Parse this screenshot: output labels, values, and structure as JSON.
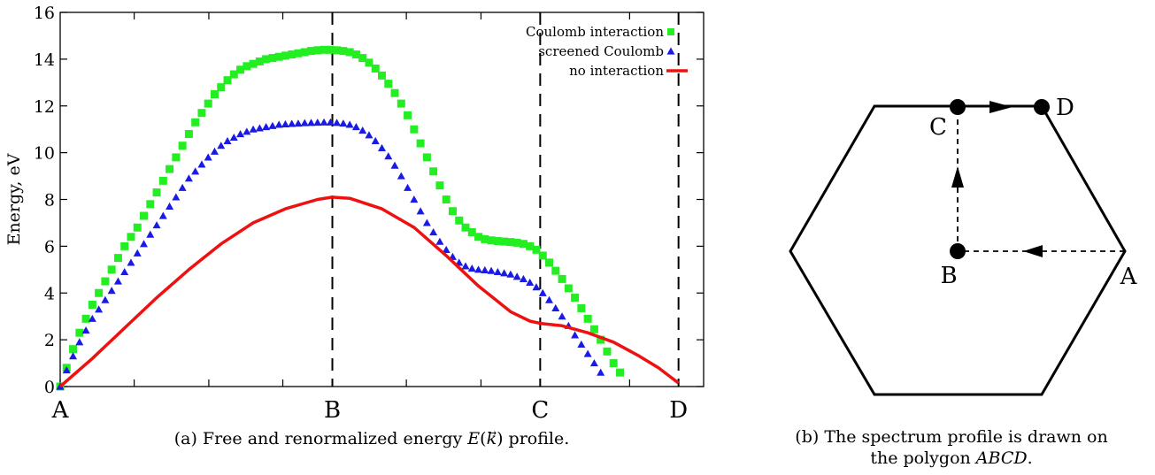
{
  "chart_data": [
    {
      "type": "scatter",
      "ylabel": "Energy, eV",
      "ylim": [
        0,
        16
      ],
      "yticks": [
        0,
        2,
        4,
        6,
        8,
        10,
        12,
        14,
        16
      ],
      "xlim": [
        0,
        1
      ],
      "xticks": [
        {
          "x": 0.0,
          "label": "A"
        },
        {
          "x": 0.423,
          "label": "B"
        },
        {
          "x": 0.746,
          "label": "C"
        },
        {
          "x": 0.961,
          "label": "D"
        }
      ],
      "minor_xticks": [
        0.115,
        0.231,
        0.346,
        0.538,
        0.654,
        0.885
      ],
      "vlines": [
        0.423,
        0.746,
        0.961
      ],
      "legend_position": "top-right",
      "series": [
        {
          "name": "Coulomb interaction",
          "marker": "square",
          "color": "#22ee22",
          "points": [
            [
              0.0,
              0.0
            ],
            [
              0.01,
              0.8
            ],
            [
              0.02,
              1.6
            ],
            [
              0.03,
              2.3
            ],
            [
              0.04,
              2.9
            ],
            [
              0.05,
              3.5
            ],
            [
              0.06,
              4.0
            ],
            [
              0.07,
              4.5
            ],
            [
              0.08,
              5.0
            ],
            [
              0.09,
              5.5
            ],
            [
              0.1,
              6.0
            ],
            [
              0.11,
              6.4
            ],
            [
              0.12,
              6.8
            ],
            [
              0.13,
              7.3
            ],
            [
              0.14,
              7.8
            ],
            [
              0.15,
              8.3
            ],
            [
              0.16,
              8.8
            ],
            [
              0.17,
              9.3
            ],
            [
              0.18,
              9.8
            ],
            [
              0.19,
              10.3
            ],
            [
              0.2,
              10.8
            ],
            [
              0.21,
              11.3
            ],
            [
              0.22,
              11.7
            ],
            [
              0.23,
              12.1
            ],
            [
              0.24,
              12.5
            ],
            [
              0.25,
              12.8
            ],
            [
              0.26,
              13.1
            ],
            [
              0.27,
              13.35
            ],
            [
              0.28,
              13.55
            ],
            [
              0.29,
              13.7
            ],
            [
              0.3,
              13.8
            ],
            [
              0.31,
              13.9
            ],
            [
              0.32,
              14.0
            ],
            [
              0.33,
              14.05
            ],
            [
              0.34,
              14.1
            ],
            [
              0.35,
              14.15
            ],
            [
              0.36,
              14.2
            ],
            [
              0.37,
              14.25
            ],
            [
              0.38,
              14.3
            ],
            [
              0.39,
              14.35
            ],
            [
              0.4,
              14.38
            ],
            [
              0.41,
              14.4
            ],
            [
              0.42,
              14.4
            ],
            [
              0.43,
              14.38
            ],
            [
              0.44,
              14.35
            ],
            [
              0.45,
              14.3
            ],
            [
              0.46,
              14.2
            ],
            [
              0.47,
              14.05
            ],
            [
              0.48,
              13.85
            ],
            [
              0.49,
              13.6
            ],
            [
              0.5,
              13.3
            ],
            [
              0.51,
              12.95
            ],
            [
              0.52,
              12.55
            ],
            [
              0.53,
              12.1
            ],
            [
              0.54,
              11.6
            ],
            [
              0.55,
              11.0
            ],
            [
              0.56,
              10.4
            ],
            [
              0.57,
              9.8
            ],
            [
              0.58,
              9.2
            ],
            [
              0.59,
              8.6
            ],
            [
              0.6,
              8.0
            ],
            [
              0.61,
              7.5
            ],
            [
              0.62,
              7.1
            ],
            [
              0.63,
              6.8
            ],
            [
              0.64,
              6.6
            ],
            [
              0.65,
              6.4
            ],
            [
              0.66,
              6.3
            ],
            [
              0.67,
              6.25
            ],
            [
              0.68,
              6.22
            ],
            [
              0.69,
              6.2
            ],
            [
              0.7,
              6.18
            ],
            [
              0.71,
              6.15
            ],
            [
              0.72,
              6.1
            ],
            [
              0.73,
              6.0
            ],
            [
              0.74,
              5.85
            ],
            [
              0.75,
              5.6
            ],
            [
              0.76,
              5.3
            ],
            [
              0.77,
              4.95
            ],
            [
              0.78,
              4.6
            ],
            [
              0.79,
              4.2
            ],
            [
              0.8,
              3.8
            ],
            [
              0.81,
              3.35
            ],
            [
              0.82,
              2.9
            ],
            [
              0.83,
              2.45
            ],
            [
              0.84,
              2.0
            ],
            [
              0.85,
              1.5
            ],
            [
              0.86,
              1.0
            ],
            [
              0.87,
              0.6
            ]
          ]
        },
        {
          "name": "screened Coulomb",
          "marker": "triangle",
          "color": "#1a1ae6",
          "points": [
            [
              0.0,
              0.0
            ],
            [
              0.01,
              0.7
            ],
            [
              0.02,
              1.3
            ],
            [
              0.03,
              1.9
            ],
            [
              0.04,
              2.4
            ],
            [
              0.05,
              2.9
            ],
            [
              0.06,
              3.3
            ],
            [
              0.07,
              3.7
            ],
            [
              0.08,
              4.1
            ],
            [
              0.09,
              4.5
            ],
            [
              0.1,
              4.9
            ],
            [
              0.11,
              5.3
            ],
            [
              0.12,
              5.7
            ],
            [
              0.13,
              6.1
            ],
            [
              0.14,
              6.5
            ],
            [
              0.15,
              6.9
            ],
            [
              0.16,
              7.3
            ],
            [
              0.17,
              7.7
            ],
            [
              0.18,
              8.1
            ],
            [
              0.19,
              8.5
            ],
            [
              0.2,
              8.9
            ],
            [
              0.21,
              9.2
            ],
            [
              0.22,
              9.5
            ],
            [
              0.23,
              9.8
            ],
            [
              0.24,
              10.05
            ],
            [
              0.25,
              10.3
            ],
            [
              0.26,
              10.5
            ],
            [
              0.27,
              10.65
            ],
            [
              0.28,
              10.8
            ],
            [
              0.29,
              10.9
            ],
            [
              0.3,
              11.0
            ],
            [
              0.31,
              11.05
            ],
            [
              0.32,
              11.1
            ],
            [
              0.33,
              11.15
            ],
            [
              0.34,
              11.2
            ],
            [
              0.35,
              11.22
            ],
            [
              0.36,
              11.24
            ],
            [
              0.37,
              11.25
            ],
            [
              0.38,
              11.27
            ],
            [
              0.39,
              11.28
            ],
            [
              0.4,
              11.29
            ],
            [
              0.41,
              11.3
            ],
            [
              0.42,
              11.3
            ],
            [
              0.43,
              11.28
            ],
            [
              0.44,
              11.25
            ],
            [
              0.45,
              11.2
            ],
            [
              0.46,
              11.1
            ],
            [
              0.47,
              10.95
            ],
            [
              0.48,
              10.75
            ],
            [
              0.49,
              10.5
            ],
            [
              0.5,
              10.2
            ],
            [
              0.51,
              9.85
            ],
            [
              0.52,
              9.45
            ],
            [
              0.53,
              9.0
            ],
            [
              0.54,
              8.5
            ],
            [
              0.55,
              8.0
            ],
            [
              0.56,
              7.5
            ],
            [
              0.57,
              7.0
            ],
            [
              0.58,
              6.6
            ],
            [
              0.59,
              6.2
            ],
            [
              0.6,
              5.85
            ],
            [
              0.61,
              5.55
            ],
            [
              0.62,
              5.3
            ],
            [
              0.63,
              5.15
            ],
            [
              0.64,
              5.05
            ],
            [
              0.65,
              5.0
            ],
            [
              0.66,
              4.98
            ],
            [
              0.67,
              4.95
            ],
            [
              0.68,
              4.9
            ],
            [
              0.69,
              4.85
            ],
            [
              0.7,
              4.8
            ],
            [
              0.71,
              4.7
            ],
            [
              0.72,
              4.6
            ],
            [
              0.73,
              4.45
            ],
            [
              0.74,
              4.25
            ],
            [
              0.75,
              4.0
            ],
            [
              0.76,
              3.7
            ],
            [
              0.77,
              3.35
            ],
            [
              0.78,
              3.0
            ],
            [
              0.79,
              2.6
            ],
            [
              0.8,
              2.2
            ],
            [
              0.81,
              1.8
            ],
            [
              0.82,
              1.4
            ],
            [
              0.83,
              1.0
            ],
            [
              0.84,
              0.6
            ]
          ]
        },
        {
          "name": "no interaction",
          "marker": "line",
          "color": "#ee1111",
          "points": [
            [
              0.0,
              0.0
            ],
            [
              0.05,
              1.2
            ],
            [
              0.1,
              2.5
            ],
            [
              0.15,
              3.8
            ],
            [
              0.2,
              5.0
            ],
            [
              0.25,
              6.1
            ],
            [
              0.3,
              7.0
            ],
            [
              0.35,
              7.6
            ],
            [
              0.4,
              8.0
            ],
            [
              0.423,
              8.1
            ],
            [
              0.45,
              8.05
            ],
            [
              0.5,
              7.6
            ],
            [
              0.55,
              6.8
            ],
            [
              0.6,
              5.6
            ],
            [
              0.65,
              4.3
            ],
            [
              0.7,
              3.2
            ],
            [
              0.73,
              2.8
            ],
            [
              0.746,
              2.7
            ],
            [
              0.78,
              2.6
            ],
            [
              0.82,
              2.3
            ],
            [
              0.86,
              1.9
            ],
            [
              0.9,
              1.3
            ],
            [
              0.93,
              0.8
            ],
            [
              0.961,
              0.15
            ]
          ]
        }
      ]
    },
    {
      "type": "diagram",
      "points": [
        {
          "id": "A",
          "label": "A"
        },
        {
          "id": "B",
          "label": "B"
        },
        {
          "id": "C",
          "label": "C"
        },
        {
          "id": "D",
          "label": "D"
        }
      ],
      "path": [
        "A",
        "B",
        "C",
        "D"
      ]
    }
  ],
  "captions": {
    "a_prefix": "(a) Free and renormalized energy ",
    "a_suffix": " profile.",
    "b_line1": "(b) The spectrum profile is drawn on",
    "b_line2_prefix": "the polygon ",
    "b_line2_italic": "ABCD",
    "b_line2_suffix": "."
  }
}
